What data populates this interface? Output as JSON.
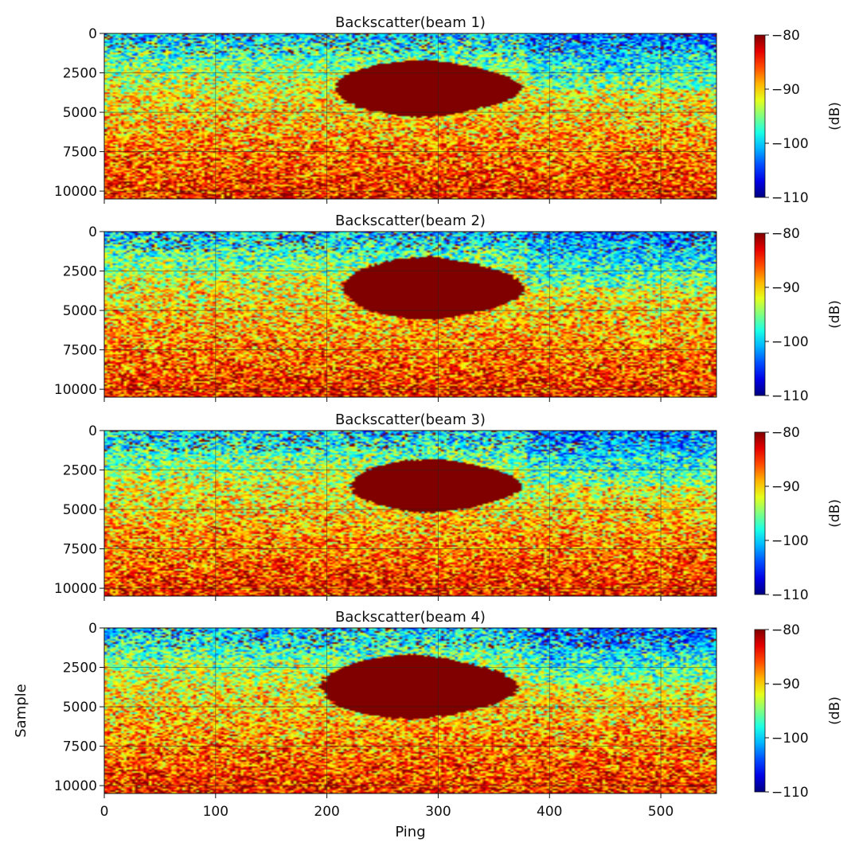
{
  "chart_data": [
    {
      "type": "heatmap",
      "title": "Backscatter(beam 1)",
      "xlabel": "",
      "ylabel": "",
      "xlim": [
        0,
        550
      ],
      "ylim": [
        10500,
        0
      ],
      "xticks": [],
      "yticks": [
        "0",
        "2500",
        "5000",
        "7500",
        "10000"
      ],
      "colorbar": {
        "label": "(dB)",
        "range": [
          -110,
          -80
        ],
        "ticks": [
          "-80",
          "-90",
          "-100",
          "-110"
        ],
        "colormap": "jet"
      },
      "grid": true,
      "dark_region": {
        "x": [
          208,
          375
        ],
        "y": [
          1700,
          5300
        ],
        "value_db": -80
      }
    },
    {
      "type": "heatmap",
      "title": "Backscatter(beam 2)",
      "xlabel": "",
      "ylabel": "",
      "xlim": [
        0,
        550
      ],
      "ylim": [
        10500,
        0
      ],
      "xticks": [],
      "yticks": [
        "0",
        "2500",
        "5000",
        "7500",
        "10000"
      ],
      "colorbar": {
        "label": "(dB)",
        "range": [
          -110,
          -80
        ],
        "ticks": [
          "-80",
          "-90",
          "-100",
          "-110"
        ],
        "colormap": "jet"
      },
      "grid": true,
      "dark_region": {
        "x": [
          215,
          378
        ],
        "y": [
          1600,
          5600
        ],
        "value_db": -80
      }
    },
    {
      "type": "heatmap",
      "title": "Backscatter(beam 3)",
      "xlabel": "",
      "ylabel": "",
      "xlim": [
        0,
        550
      ],
      "ylim": [
        10500,
        0
      ],
      "xticks": [],
      "yticks": [
        "0",
        "2500",
        "5000",
        "7500",
        "10000"
      ],
      "colorbar": {
        "label": "(dB)",
        "range": [
          -110,
          -80
        ],
        "ticks": [
          "-80",
          "-90",
          "-100",
          "-110"
        ],
        "colormap": "jet"
      },
      "grid": true,
      "dark_region": {
        "x": [
          222,
          375
        ],
        "y": [
          1800,
          5200
        ],
        "value_db": -80
      }
    },
    {
      "type": "heatmap",
      "title": "Backscatter(beam 4)",
      "xlabel": "Ping",
      "ylabel": "Sample",
      "xlim": [
        0,
        550
      ],
      "ylim": [
        10500,
        0
      ],
      "xticks": [
        "0",
        "100",
        "200",
        "300",
        "400",
        "500"
      ],
      "yticks": [
        "0",
        "2500",
        "5000",
        "7500",
        "10000"
      ],
      "colorbar": {
        "label": "(dB)",
        "range": [
          -110,
          -80
        ],
        "ticks": [
          "-80",
          "-90",
          "-100",
          "-110"
        ],
        "colormap": "jet"
      },
      "grid": true,
      "dark_region": {
        "x": [
          195,
          372
        ],
        "y": [
          1700,
          5800
        ],
        "value_db": -80
      }
    }
  ]
}
